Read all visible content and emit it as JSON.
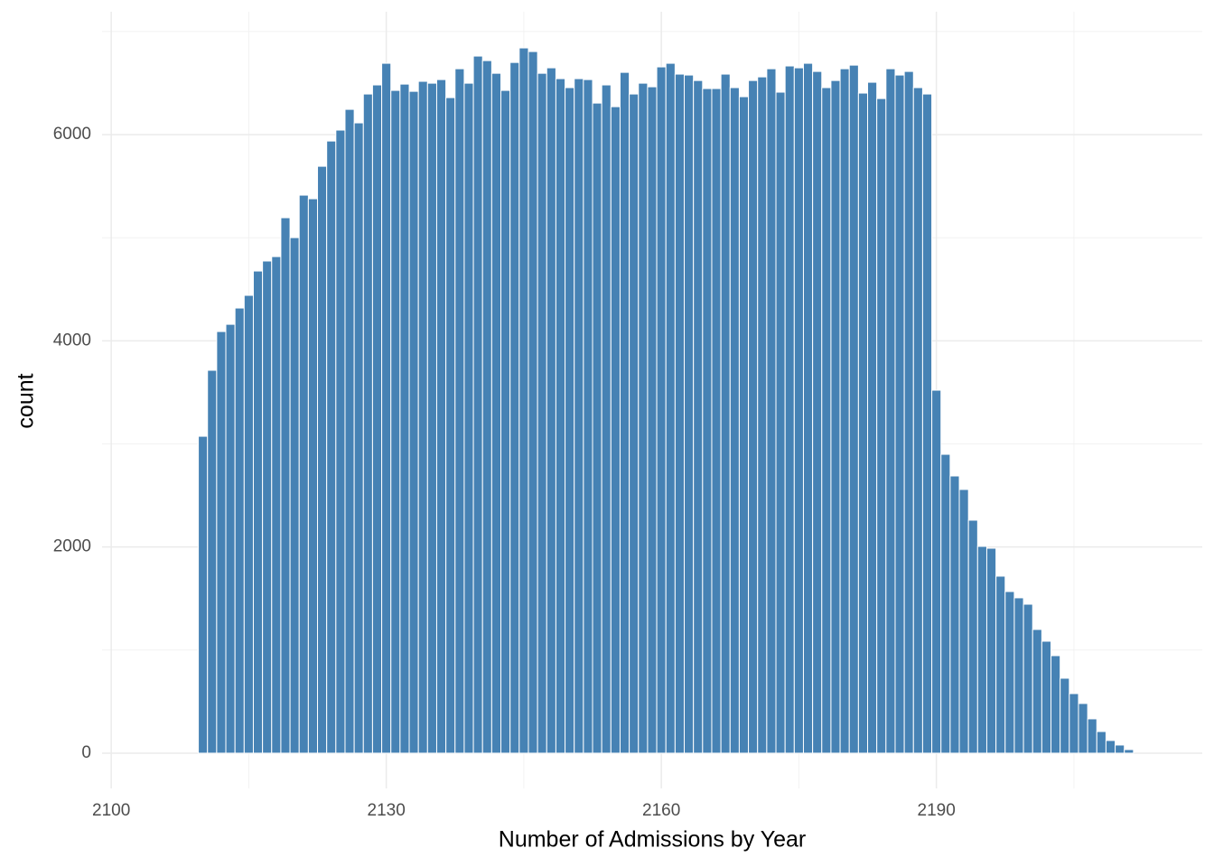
{
  "chart_data": {
    "type": "histogram",
    "x_label": "Number of Admissions by Year",
    "y_label": "count",
    "color": "#4682b4",
    "bins": [
      2109.5,
      2110.5,
      2111.5,
      2112.5,
      2113.5,
      2114.5,
      2115.5,
      2116.5,
      2117.5,
      2118.5,
      2119.5,
      2120.5,
      2121.5,
      2122.5,
      2123.5,
      2124.5,
      2125.5,
      2126.5,
      2127.5,
      2128.5,
      2129.5,
      2130.5,
      2131.5,
      2132.5,
      2133.5,
      2134.5,
      2135.5,
      2136.5,
      2137.5,
      2138.5,
      2139.5,
      2140.5,
      2141.5,
      2142.5,
      2143.5,
      2144.5,
      2145.5,
      2146.5,
      2147.5,
      2148.5,
      2149.5,
      2150.5,
      2151.5,
      2152.5,
      2153.5,
      2154.5,
      2155.5,
      2156.5,
      2157.5,
      2158.5,
      2159.5,
      2160.5,
      2161.5,
      2162.5,
      2163.5,
      2164.5,
      2165.5,
      2166.5,
      2167.5,
      2168.5,
      2169.5,
      2170.5,
      2171.5,
      2172.5,
      2173.5,
      2174.5,
      2175.5,
      2176.5,
      2177.5,
      2178.5,
      2179.5,
      2180.5,
      2181.5,
      2182.5,
      2183.5,
      2184.5,
      2185.5,
      2186.5,
      2187.5,
      2188.5,
      2189.5,
      2190.5,
      2191.5,
      2192.5,
      2193.5,
      2194.5,
      2195.5,
      2196.5,
      2197.5,
      2198.5,
      2199.5,
      2200.5,
      2201.5,
      2202.5,
      2203.5,
      2204.5,
      2205.5,
      2206.5,
      2207.5,
      2208.5,
      2209.5,
      2210.5,
      2211.5
    ],
    "values": [
      3074,
      3714,
      4090,
      4160,
      4318,
      4441,
      4677,
      4774,
      4817,
      5194,
      5001,
      5413,
      5378,
      5693,
      5938,
      6044,
      6245,
      6114,
      6394,
      6482,
      6692,
      6429,
      6490,
      6420,
      6517,
      6499,
      6534,
      6359,
      6639,
      6499,
      6762,
      6718,
      6595,
      6429,
      6700,
      6841,
      6806,
      6595,
      6648,
      6543,
      6456,
      6543,
      6534,
      6306,
      6482,
      6271,
      6604,
      6394,
      6499,
      6464,
      6657,
      6692,
      6587,
      6578,
      6525,
      6447,
      6447,
      6587,
      6456,
      6368,
      6525,
      6560,
      6639,
      6412,
      6666,
      6648,
      6692,
      6613,
      6456,
      6525,
      6639,
      6674,
      6403,
      6508,
      6350,
      6639,
      6578,
      6613,
      6456,
      6394,
      3521,
      2899,
      2689,
      2558,
      2260,
      2006,
      1988,
      1717,
      1568,
      1507,
      1445,
      1200,
      1086,
      946,
      727,
      578,
      482,
      333,
      210,
      123,
      79,
      35
    ],
    "xlim": [
      2099,
      2219
    ],
    "ylim": [
      -342,
      7192
    ],
    "xticks": [
      2100,
      2130,
      2160,
      2190
    ],
    "yticks": [
      0,
      2000,
      4000,
      6000
    ],
    "x_minor_ticks": [
      2115,
      2145,
      2175,
      2205
    ],
    "y_minor_ticks": [
      1000,
      3000,
      5000,
      7000
    ],
    "grid": true
  }
}
